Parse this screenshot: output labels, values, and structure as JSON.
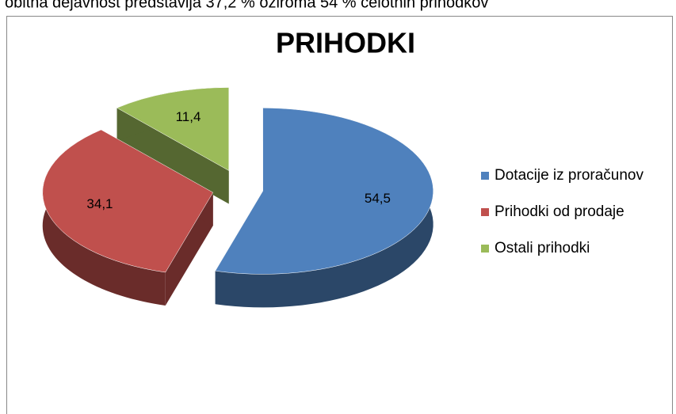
{
  "caption": "obitna dejavnost predstavlja 37,2 % oziroma 54 % celotnih prihodkov",
  "chart_data": {
    "type": "pie3d",
    "title": "PRIHODKI",
    "categories": [
      "Dotacije iz proračunov",
      "Prihodki od prodaje",
      "Ostali prihodki"
    ],
    "values": [
      54.5,
      34.1,
      11.4
    ],
    "value_labels": [
      "54,5",
      "34,1",
      "11,4"
    ],
    "colors": [
      "#4f81bd",
      "#c0504d",
      "#9bbb59"
    ],
    "legend": "right"
  }
}
